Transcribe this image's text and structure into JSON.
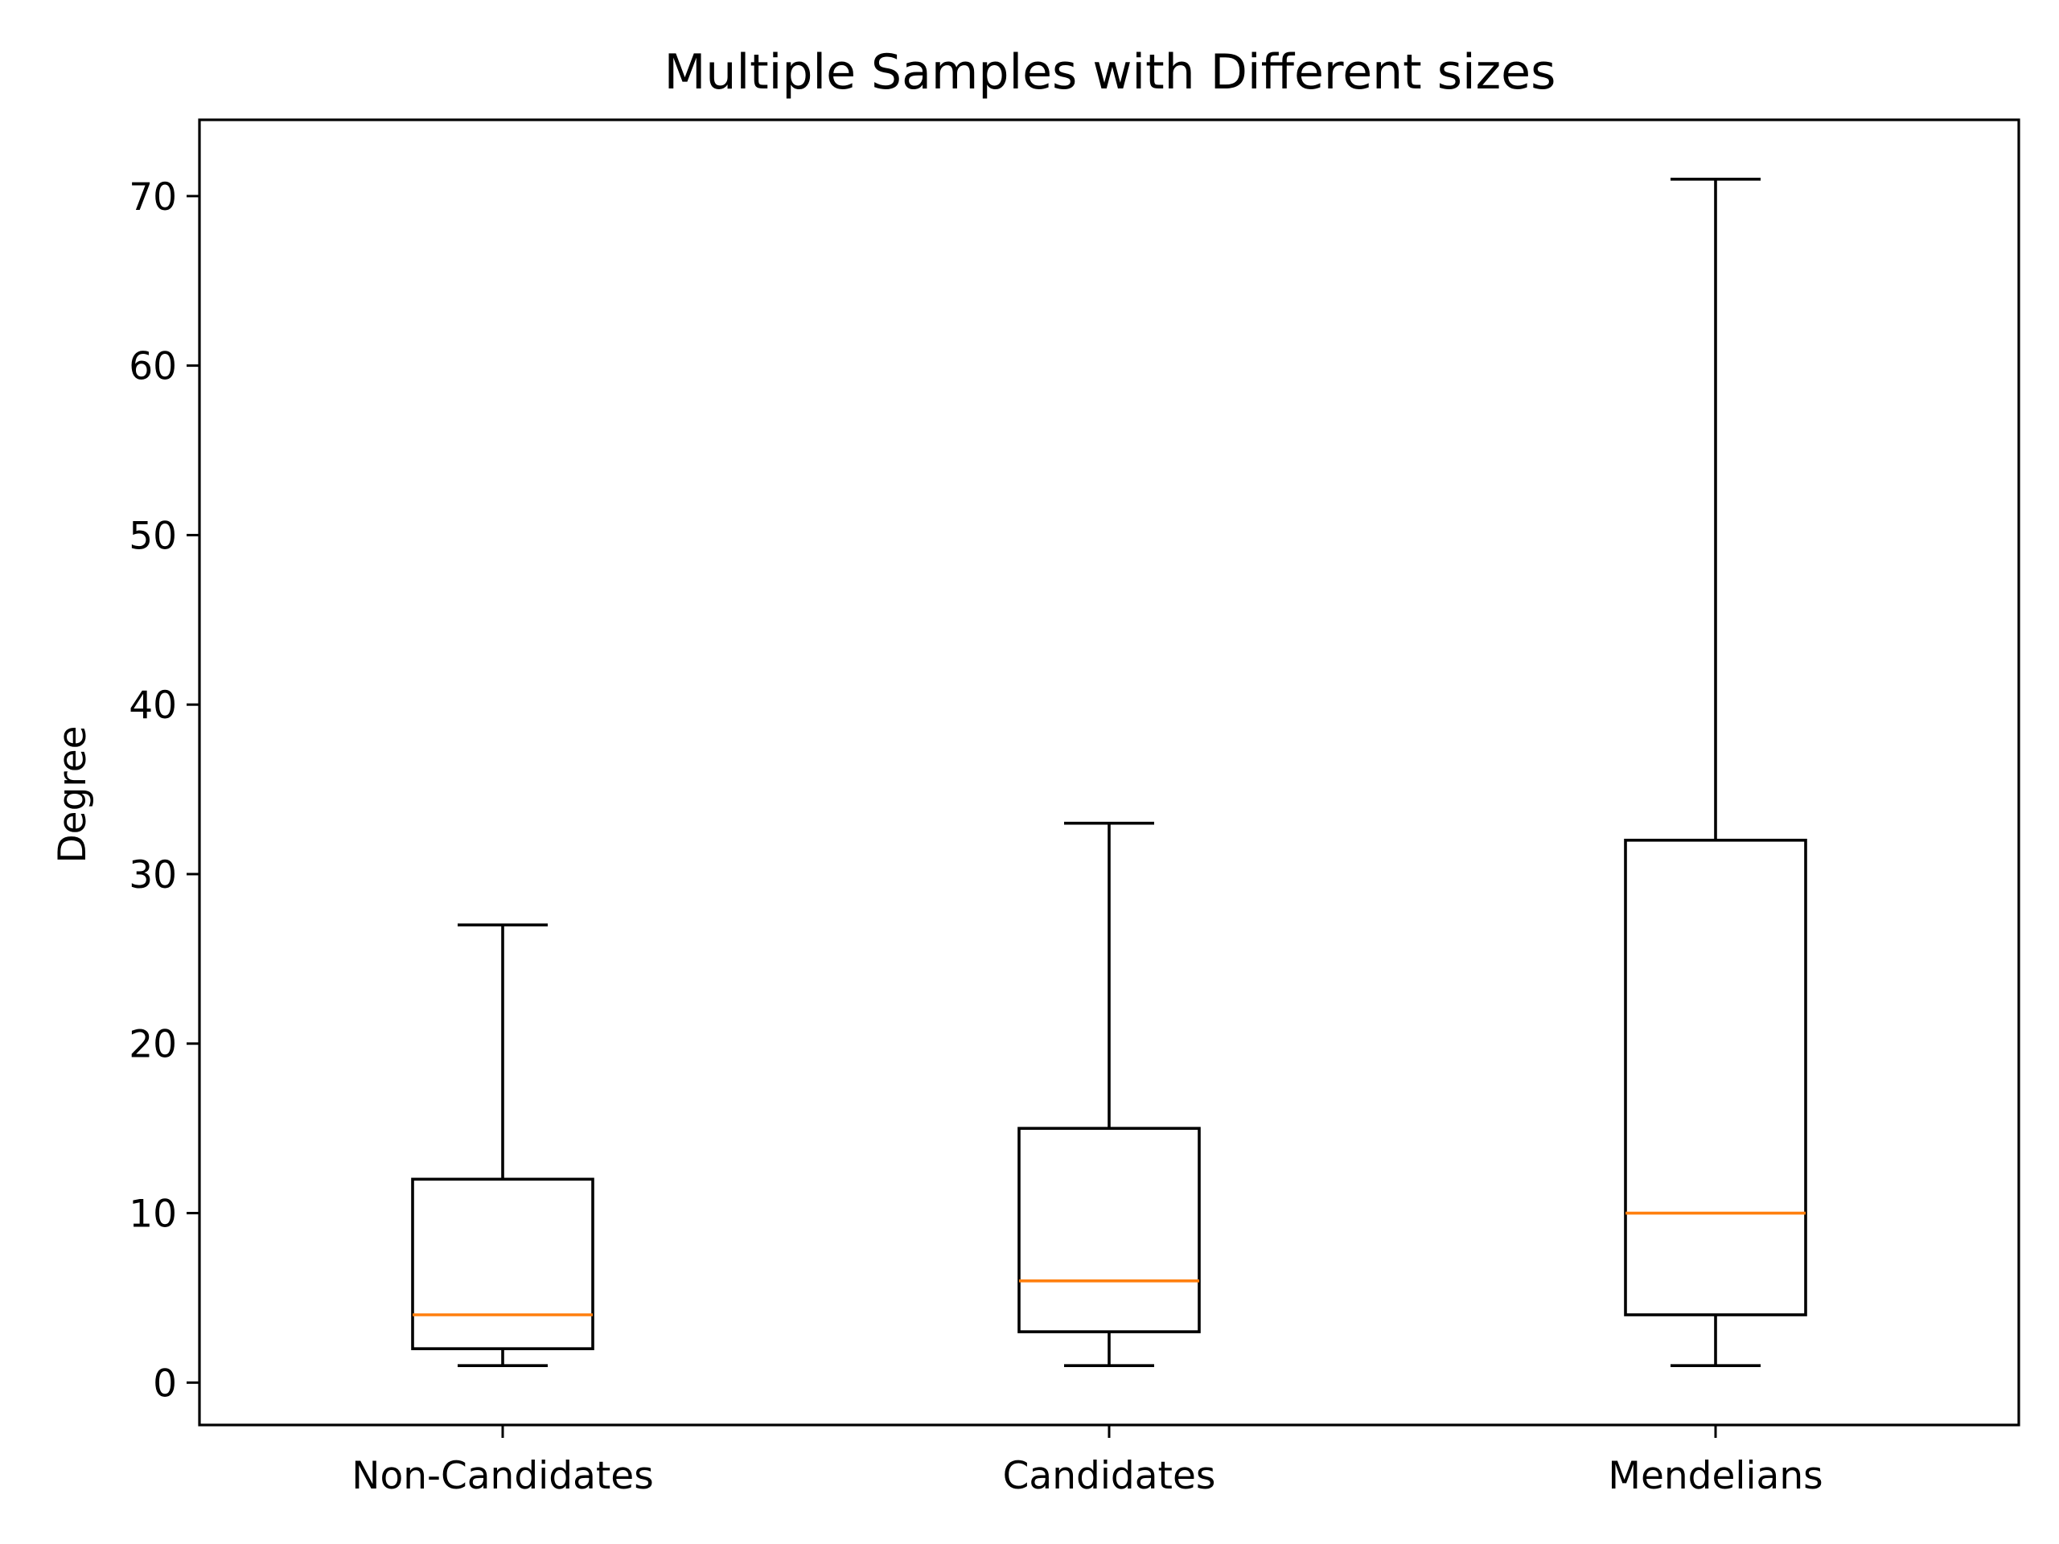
{
  "chart_data": {
    "type": "box",
    "title": "Multiple Samples with Different sizes",
    "xlabel": "",
    "ylabel": "Degree",
    "categories": [
      "Non-Candidates",
      "Candidates",
      "Mendelians"
    ],
    "boxes": [
      {
        "whisker_low": 1,
        "q1": 2,
        "median": 4,
        "q3": 12,
        "whisker_high": 27
      },
      {
        "whisker_low": 1,
        "q1": 3,
        "median": 6,
        "q3": 15,
        "whisker_high": 33
      },
      {
        "whisker_low": 1,
        "q1": 4,
        "median": 10,
        "q3": 32,
        "whisker_high": 71
      }
    ],
    "ylim": [
      -2.5,
      74.5
    ],
    "yticks": [
      0,
      10,
      20,
      30,
      40,
      50,
      60,
      70
    ],
    "grid": false,
    "legend": "none",
    "colors": {
      "box": "#000000",
      "median": "#ff7f0e"
    }
  }
}
